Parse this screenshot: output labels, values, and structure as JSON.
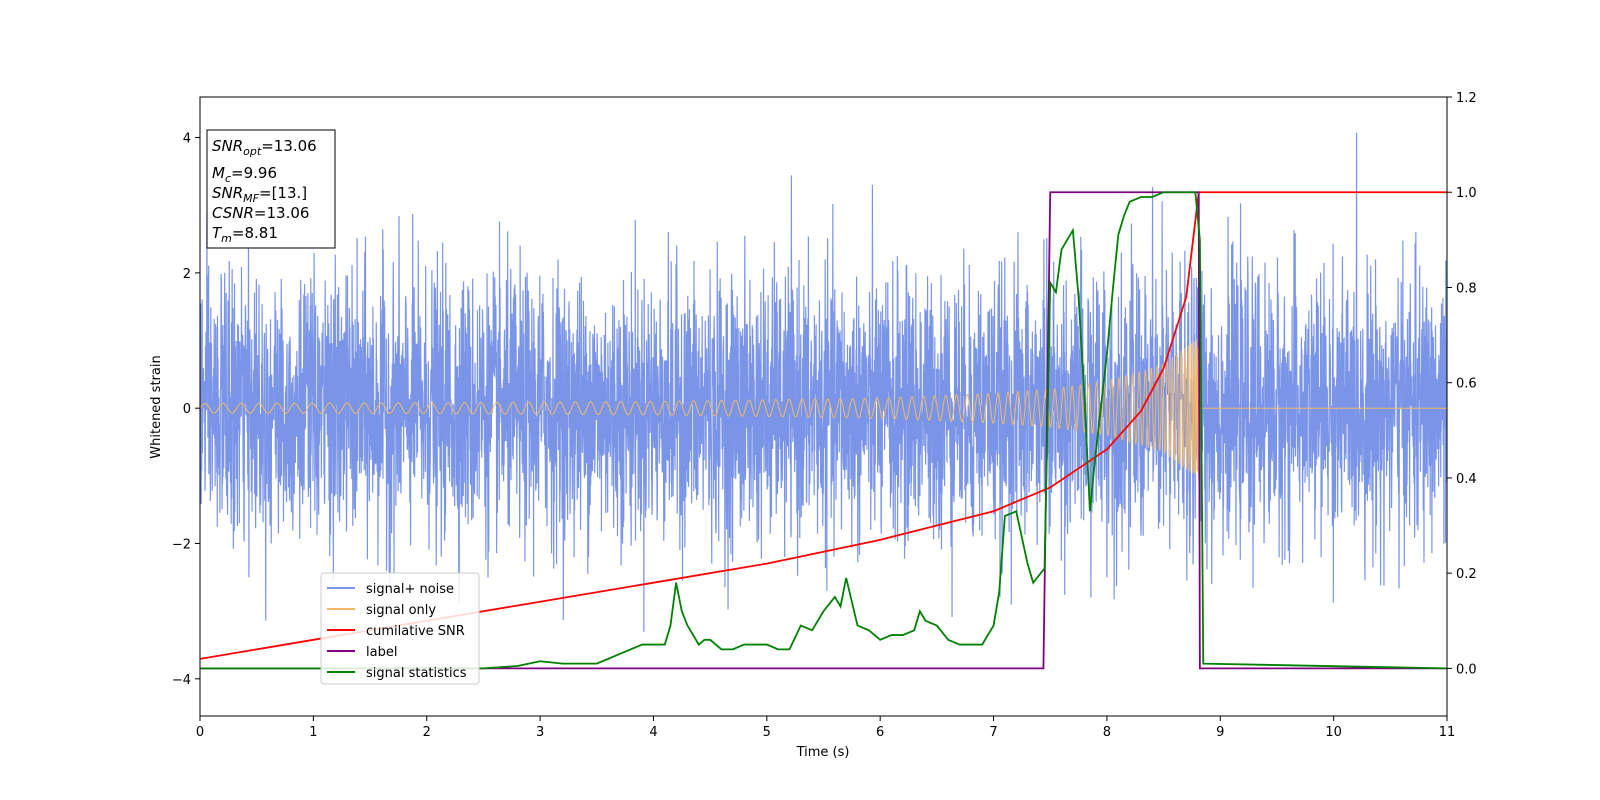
{
  "chart_data": {
    "type": "line",
    "xlabel": "Time (s)",
    "ylabel": "Whitened strain",
    "xlim": [
      0,
      11
    ],
    "ylim_left": [
      -4.55,
      4.6
    ],
    "ylim_right": [
      -0.1,
      1.2
    ],
    "x_ticks": [
      "0",
      "1",
      "2",
      "3",
      "4",
      "5",
      "6",
      "7",
      "8",
      "9",
      "10",
      "11"
    ],
    "y_ticks_left": [
      "−4",
      "−2",
      "0",
      "2",
      "4"
    ],
    "y_ticks_right": [
      "0.0",
      "0.2",
      "0.4",
      "0.6",
      "0.8",
      "1.0",
      "1.2"
    ],
    "grid": false,
    "legend_position": "lower-left",
    "annotation": {
      "snr_opt": {
        "base": "SNR",
        "sub": "opt",
        "value": "=13.06"
      },
      "mc": {
        "base": "M",
        "sub": "c",
        "value": "=9.96"
      },
      "snr_mf": {
        "base": "SNR",
        "sub": "MF",
        "value": "=[13.]"
      },
      "csnr": {
        "base": "CSNR",
        "sub": "",
        "value": "=13.06"
      },
      "tm": {
        "base": "T",
        "sub": "m",
        "value": "=8.81"
      }
    },
    "series": [
      {
        "name": "signal+ noise",
        "axis": "left",
        "color": "#7a95e8",
        "noise_sigma": 1.0,
        "envelope_max": 4.2
      },
      {
        "name": "signal only",
        "axis": "left",
        "color": "#f2b866",
        "merger_time": 8.81,
        "amplitude": [
          [
            0,
            0.07
          ],
          [
            2,
            0.08
          ],
          [
            4,
            0.1
          ],
          [
            6,
            0.15
          ],
          [
            7,
            0.22
          ],
          [
            7.5,
            0.28
          ],
          [
            8,
            0.4
          ],
          [
            8.5,
            0.65
          ],
          [
            8.81,
            1.05
          ],
          [
            8.82,
            0.0
          ],
          [
            11,
            0.0
          ]
        ]
      },
      {
        "name": "cumilative SNR",
        "axis": "right",
        "color": "#ff0000",
        "x": [
          0,
          1,
          2,
          3,
          4,
          5,
          6,
          6.5,
          7,
          7.5,
          8,
          8.3,
          8.5,
          8.7,
          8.81,
          8.82,
          11
        ],
        "y": [
          0.02,
          0.06,
          0.1,
          0.14,
          0.18,
          0.22,
          0.27,
          0.3,
          0.33,
          0.38,
          0.46,
          0.54,
          0.63,
          0.78,
          1.0,
          1.0,
          1.0
        ]
      },
      {
        "name": "label",
        "axis": "right",
        "color": "#800080",
        "x": [
          0,
          7.44,
          7.5,
          8.81,
          8.82,
          11
        ],
        "y": [
          0.0,
          0.0,
          1.0,
          1.0,
          0.0,
          0.0
        ]
      },
      {
        "name": "signal statistics",
        "axis": "right",
        "color": "#008000",
        "x": [
          0,
          0.5,
          1,
          1.5,
          2,
          2.5,
          2.8,
          3,
          3.2,
          3.5,
          3.6,
          3.7,
          3.8,
          3.9,
          4.0,
          4.1,
          4.15,
          4.2,
          4.25,
          4.3,
          4.4,
          4.45,
          4.5,
          4.6,
          4.7,
          4.8,
          4.9,
          5.0,
          5.1,
          5.2,
          5.3,
          5.4,
          5.5,
          5.6,
          5.65,
          5.7,
          5.8,
          5.9,
          6.0,
          6.1,
          6.2,
          6.3,
          6.35,
          6.4,
          6.5,
          6.6,
          6.7,
          6.8,
          6.9,
          7.0,
          7.05,
          7.1,
          7.2,
          7.3,
          7.35,
          7.45,
          7.5,
          7.55,
          7.6,
          7.65,
          7.7,
          7.75,
          7.8,
          7.85,
          7.9,
          8.0,
          8.05,
          8.1,
          8.15,
          8.2,
          8.3,
          8.4,
          8.5,
          8.6,
          8.7,
          8.78,
          8.82,
          8.85,
          11
        ],
        "y": [
          0.0,
          0.0,
          0.0,
          0.0,
          0.0,
          0.0,
          0.005,
          0.015,
          0.01,
          0.01,
          0.02,
          0.03,
          0.04,
          0.05,
          0.05,
          0.05,
          0.09,
          0.18,
          0.12,
          0.09,
          0.05,
          0.06,
          0.06,
          0.04,
          0.04,
          0.05,
          0.05,
          0.05,
          0.04,
          0.04,
          0.09,
          0.08,
          0.12,
          0.15,
          0.13,
          0.19,
          0.09,
          0.08,
          0.06,
          0.07,
          0.07,
          0.08,
          0.12,
          0.1,
          0.09,
          0.06,
          0.05,
          0.05,
          0.05,
          0.09,
          0.16,
          0.32,
          0.33,
          0.22,
          0.18,
          0.21,
          0.81,
          0.79,
          0.88,
          0.9,
          0.92,
          0.78,
          0.58,
          0.33,
          0.45,
          0.66,
          0.79,
          0.91,
          0.95,
          0.98,
          0.99,
          0.99,
          1.0,
          1.0,
          1.0,
          1.0,
          0.9,
          0.01,
          0.0
        ]
      }
    ]
  }
}
